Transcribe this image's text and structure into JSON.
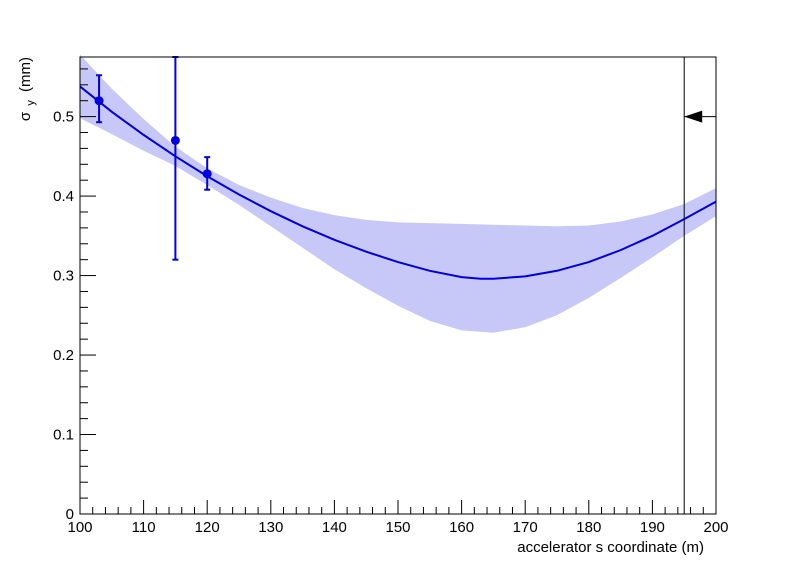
{
  "chart_data": {
    "type": "line",
    "title": "",
    "xlabel": "accelerator s coordinate (m)",
    "ylabel": {
      "main": "σ",
      "sub": "y",
      "unit": "(mm)"
    },
    "xlim": [
      100,
      200
    ],
    "ylim": [
      0,
      0.575
    ],
    "x_ticks": [
      100,
      110,
      120,
      130,
      140,
      150,
      160,
      170,
      180,
      190,
      200
    ],
    "y_ticks": [
      0,
      0.1,
      0.2,
      0.3,
      0.4,
      0.5
    ],
    "fit_curve": {
      "color": "#0000e0",
      "points": [
        [
          100,
          0.538
        ],
        [
          105,
          0.506
        ],
        [
          110,
          0.477
        ],
        [
          115,
          0.45
        ],
        [
          120,
          0.425
        ],
        [
          125,
          0.402
        ],
        [
          130,
          0.381
        ],
        [
          135,
          0.362
        ],
        [
          140,
          0.345
        ],
        [
          145,
          0.33
        ],
        [
          150,
          0.317
        ],
        [
          155,
          0.306
        ],
        [
          160,
          0.298
        ],
        [
          163,
          0.296
        ],
        [
          165,
          0.296
        ],
        [
          170,
          0.299
        ],
        [
          175,
          0.306
        ],
        [
          180,
          0.317
        ],
        [
          185,
          0.332
        ],
        [
          190,
          0.35
        ],
        [
          195,
          0.371
        ],
        [
          200,
          0.393
        ]
      ]
    },
    "confidence_band": {
      "color": "#c8c8f8",
      "upper": [
        [
          100,
          0.578
        ],
        [
          105,
          0.535
        ],
        [
          110,
          0.497
        ],
        [
          115,
          0.462
        ],
        [
          120,
          0.435
        ],
        [
          125,
          0.414
        ],
        [
          130,
          0.398
        ],
        [
          135,
          0.385
        ],
        [
          140,
          0.376
        ],
        [
          145,
          0.37
        ],
        [
          150,
          0.367
        ],
        [
          155,
          0.366
        ],
        [
          160,
          0.365
        ],
        [
          165,
          0.364
        ],
        [
          170,
          0.363
        ],
        [
          175,
          0.362
        ],
        [
          180,
          0.363
        ],
        [
          185,
          0.368
        ],
        [
          190,
          0.377
        ],
        [
          195,
          0.39
        ],
        [
          200,
          0.41
        ]
      ],
      "lower": [
        [
          100,
          0.498
        ],
        [
          105,
          0.478
        ],
        [
          110,
          0.457
        ],
        [
          115,
          0.438
        ],
        [
          120,
          0.414
        ],
        [
          125,
          0.389
        ],
        [
          130,
          0.362
        ],
        [
          135,
          0.335
        ],
        [
          140,
          0.308
        ],
        [
          145,
          0.284
        ],
        [
          150,
          0.262
        ],
        [
          155,
          0.243
        ],
        [
          160,
          0.231
        ],
        [
          165,
          0.228
        ],
        [
          170,
          0.235
        ],
        [
          175,
          0.25
        ],
        [
          180,
          0.272
        ],
        [
          185,
          0.297
        ],
        [
          190,
          0.323
        ],
        [
          195,
          0.35
        ],
        [
          200,
          0.375
        ]
      ]
    },
    "measurements": [
      {
        "x": 103,
        "y": 0.52,
        "err_low": 0.027,
        "err_high": 0.032
      },
      {
        "x": 115,
        "y": 0.47,
        "err_low": 0.15,
        "err_high": 0.105
      },
      {
        "x": 120,
        "y": 0.428,
        "err_low": 0.02,
        "err_high": 0.021
      }
    ],
    "marker_line": {
      "x": 195,
      "arrow_y": 0.5,
      "arrow_direction": "left"
    },
    "grid": false,
    "legend": "none"
  }
}
